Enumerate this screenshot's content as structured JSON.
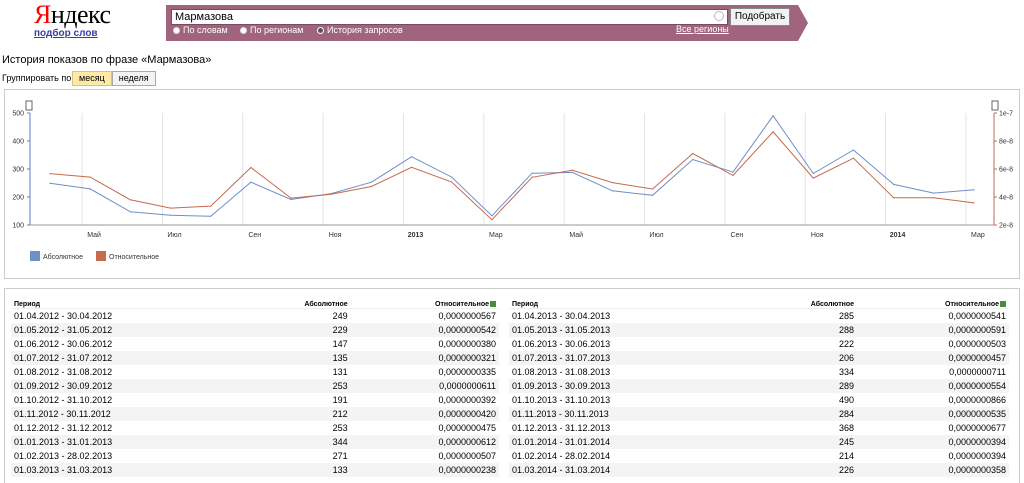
{
  "header": {
    "logo_first": "Я",
    "logo_rest": "ндекс",
    "sub_link": "подбор слов",
    "query": "Мармазова",
    "submit_label": "Подобрать",
    "radios": [
      {
        "label": "По словам",
        "selected": false
      },
      {
        "label": "По регионам",
        "selected": false
      },
      {
        "label": "История запросов",
        "selected": true
      }
    ],
    "regions_link": "Все регионы"
  },
  "page": {
    "title": "История показов по фразе «Мармазова»",
    "group_label": "Группировать по:",
    "group_month": "месяц",
    "group_week": "неделя"
  },
  "colors": {
    "absolute": "#6e8fc8",
    "relative": "#c56a4c",
    "brand_bar": "#a0647d",
    "logo_red": "#ff0000"
  },
  "chart_data": {
    "type": "line",
    "x": [
      "2012-04",
      "2012-05",
      "2012-06",
      "2012-07",
      "2012-08",
      "2012-09",
      "2012-10",
      "2012-11",
      "2012-12",
      "2013-01",
      "2013-02",
      "2013-03",
      "2013-04",
      "2013-05",
      "2013-06",
      "2013-07",
      "2013-08",
      "2013-09",
      "2013-10",
      "2013-11",
      "2013-12",
      "2014-01",
      "2014-02",
      "2014-03"
    ],
    "x_tick_labels": [
      "Май",
      "Июл",
      "Сен",
      "Ноя",
      "2013",
      "Мар",
      "Май",
      "Июл",
      "Сен",
      "Ноя",
      "2014",
      "Мар"
    ],
    "y_left_ticks": [
      "100",
      "200",
      "300",
      "400",
      "500"
    ],
    "y_right_ticks": [
      "2e-8",
      "4e-8",
      "6e-8",
      "8e-8",
      "1e-7"
    ],
    "ylim_left": [
      100,
      500
    ],
    "ylim_right": [
      2e-08,
      1e-07
    ],
    "series": [
      {
        "name": "Абсолютное",
        "axis": "left",
        "values": [
          249,
          229,
          147,
          135,
          131,
          253,
          191,
          212,
          253,
          344,
          271,
          133,
          285,
          288,
          222,
          206,
          334,
          289,
          490,
          284,
          368,
          245,
          214,
          226
        ]
      },
      {
        "name": "Относительное",
        "axis": "right",
        "values": [
          5.67e-08,
          5.42e-08,
          3.8e-08,
          3.21e-08,
          3.35e-08,
          6.11e-08,
          3.92e-08,
          4.2e-08,
          4.75e-08,
          6.12e-08,
          5.07e-08,
          2.38e-08,
          5.41e-08,
          5.91e-08,
          5.03e-08,
          4.57e-08,
          7.11e-08,
          5.54e-08,
          8.66e-08,
          5.35e-08,
          6.77e-08,
          3.94e-08,
          3.94e-08,
          3.58e-08
        ]
      }
    ]
  },
  "table": {
    "col_period": "Период",
    "col_abs": "Абсолютное",
    "col_rel": "Относительное",
    "left_rows": [
      [
        "01.04.2012 - 30.04.2012",
        "249",
        "0,0000000567"
      ],
      [
        "01.05.2012 - 31.05.2012",
        "229",
        "0,0000000542"
      ],
      [
        "01.06.2012 - 30.06.2012",
        "147",
        "0,0000000380"
      ],
      [
        "01.07.2012 - 31.07.2012",
        "135",
        "0,0000000321"
      ],
      [
        "01.08.2012 - 31.08.2012",
        "131",
        "0,0000000335"
      ],
      [
        "01.09.2012 - 30.09.2012",
        "253",
        "0,0000000611"
      ],
      [
        "01.10.2012 - 31.10.2012",
        "191",
        "0,0000000392"
      ],
      [
        "01.11.2012 - 30.11.2012",
        "212",
        "0,0000000420"
      ],
      [
        "01.12.2012 - 31.12.2012",
        "253",
        "0,0000000475"
      ],
      [
        "01.01.2013 - 31.01.2013",
        "344",
        "0,0000000612"
      ],
      [
        "01.02.2013 - 28.02.2013",
        "271",
        "0,0000000507"
      ],
      [
        "01.03.2013 - 31.03.2013",
        "133",
        "0,0000000238"
      ]
    ],
    "right_rows": [
      [
        "01.04.2013 - 30.04.2013",
        "285",
        "0,0000000541"
      ],
      [
        "01.05.2013 - 31.05.2013",
        "288",
        "0,0000000591"
      ],
      [
        "01.06.2013 - 30.06.2013",
        "222",
        "0,0000000503"
      ],
      [
        "01.07.2013 - 31.07.2013",
        "206",
        "0,0000000457"
      ],
      [
        "01.08.2013 - 31.08.2013",
        "334",
        "0,0000000711"
      ],
      [
        "01.09.2013 - 30.09.2013",
        "289",
        "0,0000000554"
      ],
      [
        "01.10.2013 - 31.10.2013",
        "490",
        "0,0000000866"
      ],
      [
        "01.11.2013 - 30.11.2013",
        "284",
        "0,0000000535"
      ],
      [
        "01.12.2013 - 31.12.2013",
        "368",
        "0,0000000677"
      ],
      [
        "01.01.2014 - 31.01.2014",
        "245",
        "0,0000000394"
      ],
      [
        "01.02.2014 - 28.02.2014",
        "214",
        "0,0000000394"
      ],
      [
        "01.03.2014 - 31.03.2014",
        "226",
        "0,0000000358"
      ]
    ]
  }
}
